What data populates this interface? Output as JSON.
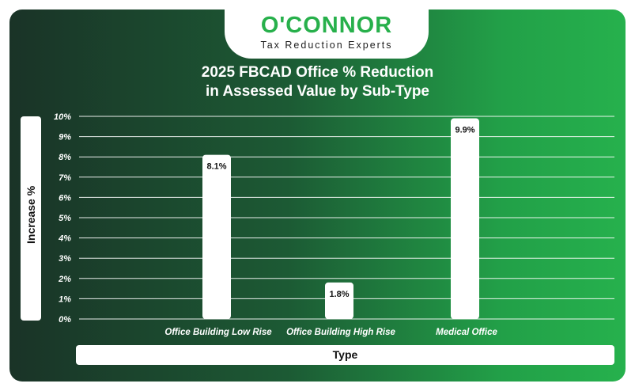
{
  "logo": {
    "main": "O'CONNOR",
    "sub": "Tax Reduction Experts"
  },
  "chart_data": {
    "type": "bar",
    "title_lines": [
      "2025 FBCAD Office % Reduction",
      "in Assessed Value by Sub-Type"
    ],
    "xlabel": "Type",
    "ylabel": "Increase %",
    "categories": [
      "Office Building Low Rise",
      "Office Building High Rise",
      "Medical Office"
    ],
    "values": [
      8.1,
      1.8,
      9.9
    ],
    "data_labels": [
      "8.1%",
      "1.8%",
      "9.9%"
    ],
    "ylim": [
      0,
      10
    ],
    "yticks": [
      0,
      1,
      2,
      3,
      4,
      5,
      6,
      7,
      8,
      9,
      10
    ],
    "ytick_labels": [
      "0%",
      "1%",
      "2%",
      "3%",
      "4%",
      "5%",
      "6%",
      "7%",
      "8%",
      "9%",
      "10%"
    ],
    "grid": true,
    "legend": "none",
    "bar_color": "#ffffff",
    "gridline_color": "#ffffff"
  }
}
